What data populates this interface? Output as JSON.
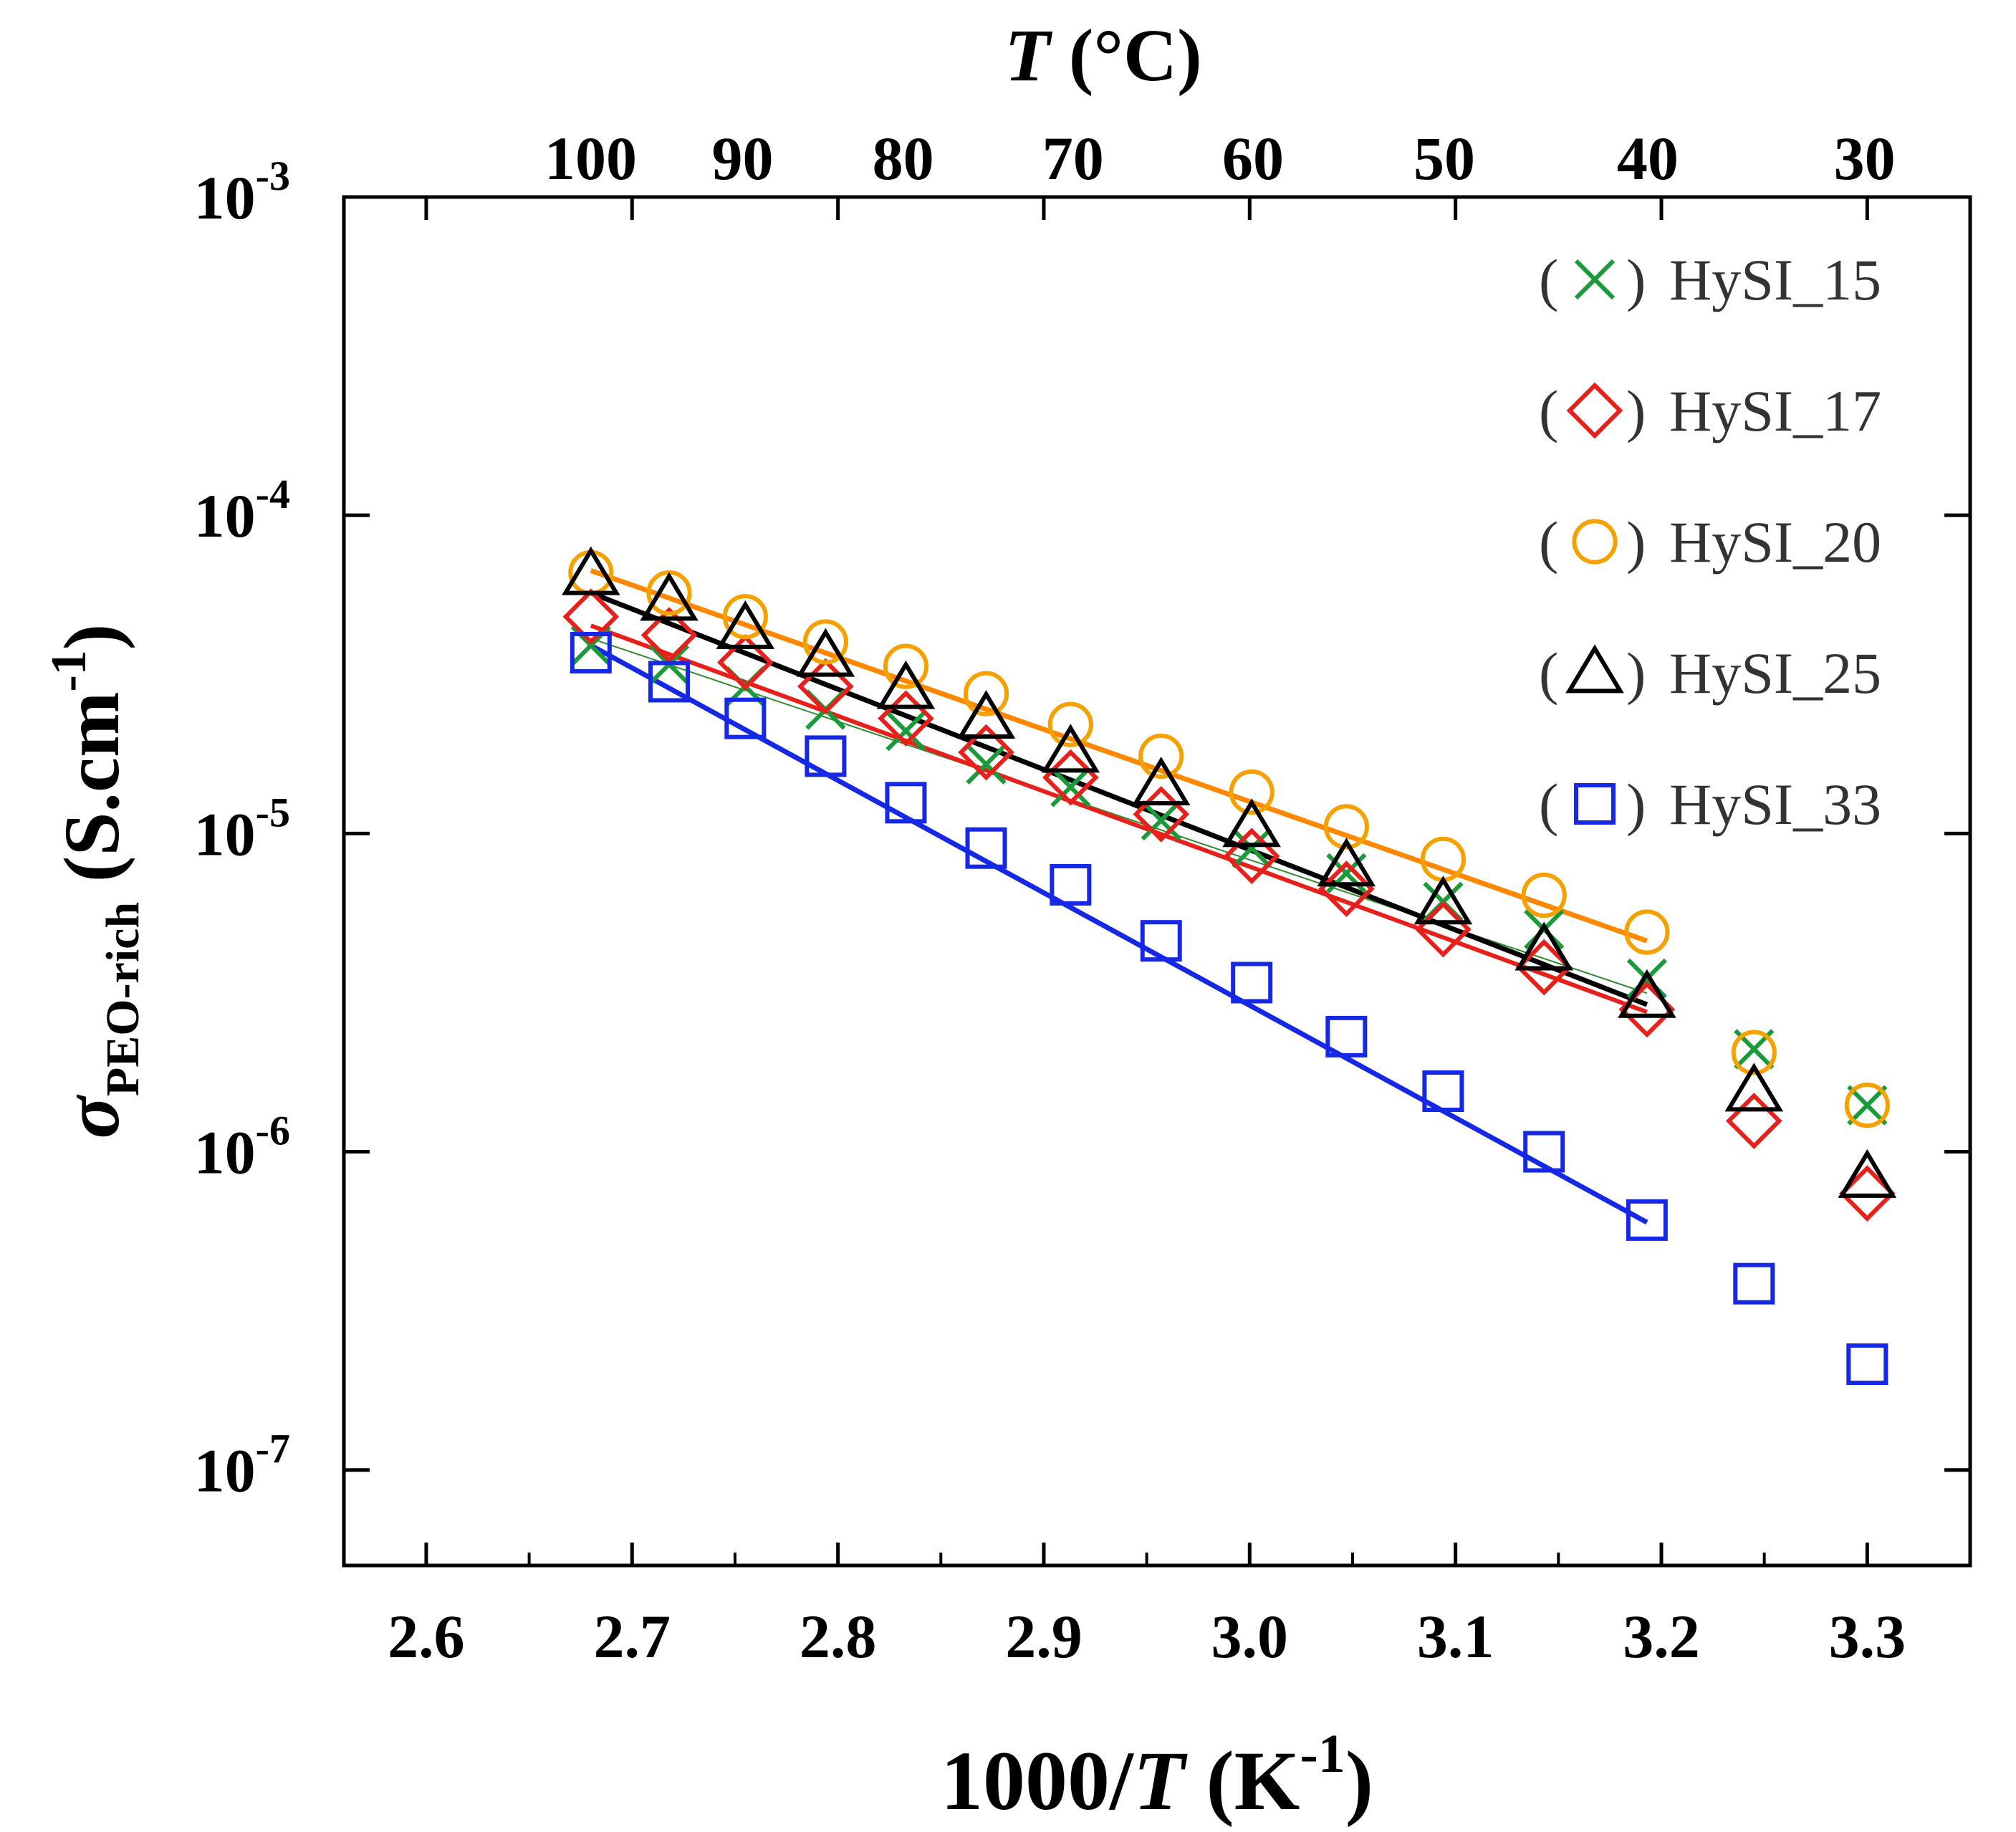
{
  "chart_data": {
    "type": "scatter",
    "title": "",
    "xlabel": {
      "prefix": "1000/",
      "var": "T",
      "unit_open": " (K",
      "unit_exp": "-1",
      "unit_close": ")"
    },
    "ylabel": {
      "sigma": "σ",
      "sub": "PEO-rich",
      "unit_open": " (S.cm",
      "unit_exp": "-1",
      "unit_close": ")"
    },
    "top_xlabel": {
      "var": "T",
      "unit": " (°C)"
    },
    "x_range": [
      2.56,
      3.35
    ],
    "y_range_log10": [
      -7.3,
      -3.0
    ],
    "x_ticks": [
      "2.6",
      "2.7",
      "2.8",
      "2.9",
      "3.0",
      "3.1",
      "3.2",
      "3.3"
    ],
    "x_tick_values": [
      2.6,
      2.7,
      2.8,
      2.9,
      3.0,
      3.1,
      3.2,
      3.3
    ],
    "y_ticks": [
      {
        "exp": -3,
        "base": "10",
        "sup": "-3"
      },
      {
        "exp": -4,
        "base": "10",
        "sup": "-4"
      },
      {
        "exp": -5,
        "base": "10",
        "sup": "-5"
      },
      {
        "exp": -6,
        "base": "10",
        "sup": "-6"
      },
      {
        "exp": -7,
        "base": "10",
        "sup": "-7"
      }
    ],
    "top_ticks": [
      {
        "label": "100",
        "celsius": 100
      },
      {
        "label": "90",
        "celsius": 90
      },
      {
        "label": "80",
        "celsius": 80
      },
      {
        "label": "70",
        "celsius": 70
      },
      {
        "label": "60",
        "celsius": 60
      },
      {
        "label": "50",
        "celsius": 50
      },
      {
        "label": "40",
        "celsius": 40
      },
      {
        "label": "30",
        "celsius": 30
      }
    ],
    "x": [
      2.68,
      2.718,
      2.755,
      2.794,
      2.833,
      2.872,
      2.913,
      2.957,
      3.001,
      3.047,
      3.094,
      3.143,
      3.193,
      3.245,
      3.3
    ],
    "fit_range": [
      2.68,
      3.193
    ],
    "legend_position": "top-right",
    "series": [
      {
        "name": "HySI_15",
        "marker": "x",
        "color": "#1a9a3a",
        "line_color": "#2e8b2e",
        "line_width": 2,
        "values": [
          3.9e-05,
          3.4e-05,
          2.9e-05,
          2.45e-05,
          2.1e-05,
          1.65e-05,
          1.4e-05,
          1.1e-05,
          9e-06,
          7.5e-06,
          6.1e-06,
          5e-06,
          3.5e-06,
          2.1e-06,
          1.4e-06
        ],
        "fit": [
          4.1e-05,
          3.15e-06
        ]
      },
      {
        "name": "HySI_17",
        "marker": "diamond",
        "color": "#e8201c",
        "line_color": "#e8201c",
        "line_width": 6,
        "values": [
          4.8e-05,
          4.2e-05,
          3.45e-05,
          2.9e-05,
          2.3e-05,
          1.8e-05,
          1.5e-05,
          1.15e-05,
          8.5e-06,
          6.7e-06,
          5e-06,
          3.8e-06,
          2.8e-06,
          1.25e-06,
          7.4e-07
        ],
        "fit": [
          4.5e-05,
          2.75e-06
        ]
      },
      {
        "name": "HySI_20",
        "marker": "circle",
        "color": "#f5a100",
        "line_color": "#ff8800",
        "line_width": 7,
        "values": [
          6.6e-05,
          5.7e-05,
          4.8e-05,
          4e-05,
          3.35e-05,
          2.75e-05,
          2.2e-05,
          1.75e-05,
          1.35e-05,
          1.05e-05,
          8.3e-06,
          6.4e-06,
          4.9e-06,
          2.05e-06,
          1.4e-06
        ],
        "fit": [
          6.7e-05,
          4.6e-06
        ]
      },
      {
        "name": "HySI_25",
        "marker": "triangle",
        "color": "#000000",
        "line_color": "#000000",
        "line_width": 7,
        "values": [
          6.5e-05,
          5.4e-05,
          4.4e-05,
          3.6e-05,
          2.85e-05,
          2.3e-05,
          1.8e-05,
          1.42e-05,
          1.05e-05,
          7.9e-06,
          6e-06,
          4.3e-06,
          3.05e-06,
          1.55e-06,
          8.3e-07
        ],
        "fit": [
          5.7e-05,
          2.9e-06
        ]
      },
      {
        "name": "HySI_33",
        "marker": "square",
        "color": "#1428e6",
        "line_color": "#1428e6",
        "line_width": 7,
        "values": [
          3.7e-05,
          3e-05,
          2.3e-05,
          1.75e-05,
          1.25e-05,
          9e-06,
          6.9e-06,
          4.6e-06,
          3.4e-06,
          2.3e-06,
          1.55e-06,
          1e-06,
          6.1e-07,
          3.85e-07,
          2.15e-07
        ],
        "fit": [
          3.9e-05,
          6e-07
        ]
      }
    ],
    "legend": [
      {
        "open": "(",
        "close": ")",
        "label": "HySI_15",
        "marker": "x",
        "color": "#1a9a3a"
      },
      {
        "open": "(",
        "close": ")",
        "label": "HySI_17",
        "marker": "diamond",
        "color": "#e8201c"
      },
      {
        "open": "(",
        "close": ")",
        "label": "HySI_20",
        "marker": "circle",
        "color": "#f5a100"
      },
      {
        "open": "(",
        "close": ")",
        "label": "HySI_25",
        "marker": "triangle",
        "color": "#000000"
      },
      {
        "open": "(",
        "close": ")",
        "label": "HySI_33",
        "marker": "square",
        "color": "#1428e6"
      }
    ]
  }
}
